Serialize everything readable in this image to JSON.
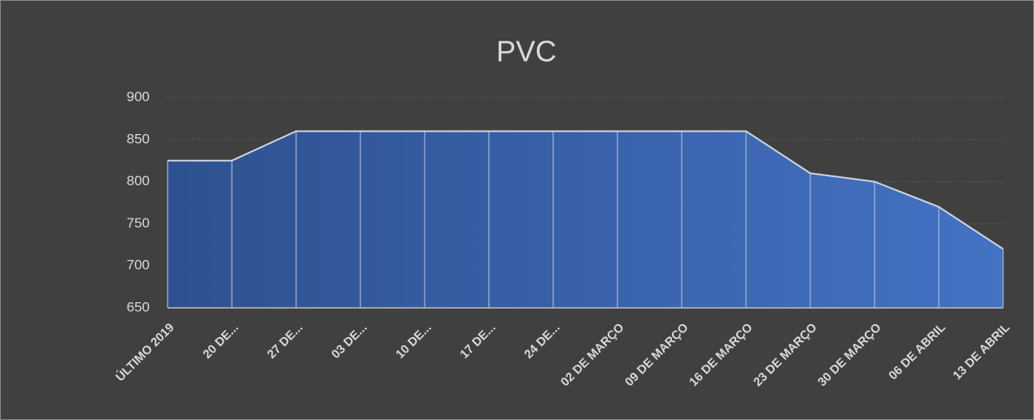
{
  "chart_data": {
    "type": "area",
    "title": "PVC",
    "categories": [
      "ÚLTIMO 2019",
      "20 DE...",
      "27 DE...",
      "03 DE...",
      "10 DE...",
      "17 DE...",
      "24 DE...",
      "02 DE MARÇO",
      "09 DE MARÇO",
      "16 DE MARÇO",
      "23 DE MARÇO",
      "30 DE MARÇO",
      "06 DE ABRIL",
      "13 DE ABRIL"
    ],
    "values": [
      825,
      825,
      860,
      860,
      860,
      860,
      860,
      860,
      860,
      860,
      810,
      800,
      770,
      720
    ],
    "color": "#4472c4",
    "ylim": [
      650,
      900
    ],
    "yticks": [
      650,
      700,
      750,
      800,
      850,
      900
    ],
    "grid": true
  }
}
